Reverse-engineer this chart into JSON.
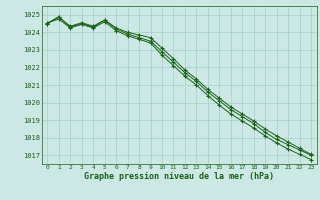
{
  "x": [
    0,
    1,
    2,
    3,
    4,
    5,
    6,
    7,
    8,
    9,
    10,
    11,
    12,
    13,
    14,
    15,
    16,
    17,
    18,
    19,
    20,
    21,
    22,
    23
  ],
  "line1": [
    1024.5,
    1024.9,
    1024.3,
    1024.5,
    1024.3,
    1024.7,
    1024.2,
    1023.9,
    1023.7,
    1023.5,
    1022.9,
    1022.3,
    1021.7,
    1021.2,
    1020.6,
    1020.1,
    1019.6,
    1019.2,
    1018.8,
    1018.3,
    1017.9,
    1017.6,
    1017.3,
    1017.0
  ],
  "line2": [
    1024.5,
    1024.85,
    1024.35,
    1024.55,
    1024.35,
    1024.7,
    1024.25,
    1024.0,
    1023.85,
    1023.7,
    1023.1,
    1022.5,
    1021.85,
    1021.35,
    1020.75,
    1020.25,
    1019.75,
    1019.35,
    1018.95,
    1018.5,
    1018.1,
    1017.75,
    1017.4,
    1017.05
  ],
  "line3": [
    1024.55,
    1024.75,
    1024.25,
    1024.45,
    1024.25,
    1024.6,
    1024.1,
    1023.8,
    1023.6,
    1023.4,
    1022.7,
    1022.1,
    1021.5,
    1021.0,
    1020.4,
    1019.85,
    1019.35,
    1018.95,
    1018.55,
    1018.1,
    1017.7,
    1017.35,
    1017.05,
    1016.75
  ],
  "line_color": "#1a6318",
  "bg_color": "#cce8e4",
  "grid_color": "#aaccca",
  "xlabel": "Graphe pression niveau de la mer (hPa)",
  "ylim": [
    1016.5,
    1025.5
  ],
  "yticks": [
    1017,
    1018,
    1019,
    1020,
    1021,
    1022,
    1023,
    1024,
    1025
  ],
  "title_color": "#1a6318",
  "marker": "+"
}
